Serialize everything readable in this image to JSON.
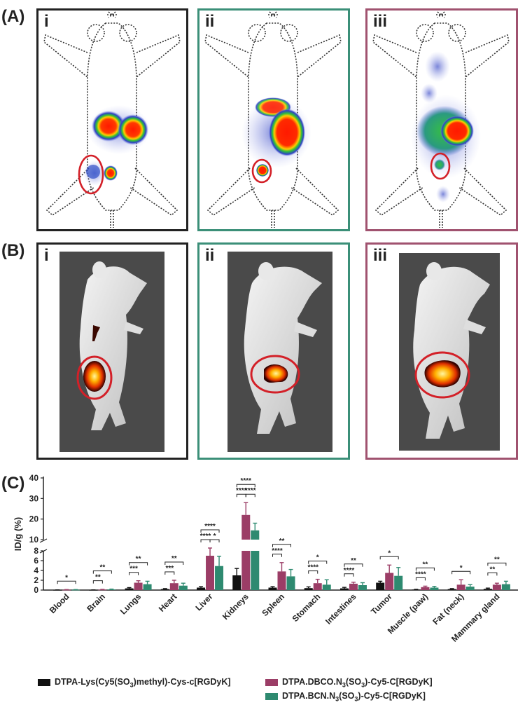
{
  "sections": {
    "a": "(A)",
    "b": "(B)",
    "c": "(C)"
  },
  "panels": {
    "a": [
      "i",
      "ii",
      "iii"
    ],
    "b": [
      "i",
      "ii",
      "iii"
    ]
  },
  "colors": {
    "panel_i": "#1a1a1a",
    "panel_ii": "#3b8f78",
    "panel_iii": "#a0526f",
    "highlight_circle": "#d32028",
    "series_1": "#111111",
    "series_2": "#9b3d66",
    "series_3": "#2e8a70"
  },
  "chart_data": {
    "type": "bar",
    "ylabel": "ID/g (%)",
    "ylim_lower": [
      0,
      8
    ],
    "ylim_upper": [
      10,
      40
    ],
    "yticks_lower": [
      "0",
      "2",
      "4",
      "6",
      "8"
    ],
    "yticks_upper": [
      "10",
      "20",
      "30",
      "40"
    ],
    "categories": [
      "Blood",
      "Brain",
      "Lungs",
      "Heart",
      "Liver",
      "Kidneys",
      "Spleen",
      "Stomach",
      "Intestines",
      "Tumor",
      "Muscle (paw)",
      "Fat (neck)",
      "Mammary gland"
    ],
    "series": [
      {
        "name": "DTPA-Lys(Cy5(SO3)methyl)-Cys-c[RGDyK]",
        "values": [
          0.02,
          0.02,
          0.35,
          0.2,
          0.5,
          3.0,
          0.5,
          0.4,
          0.35,
          1.5,
          0.1,
          0.2,
          0.25
        ],
        "errors": [
          0.02,
          0.02,
          0.15,
          0.1,
          0.2,
          1.4,
          0.2,
          0.25,
          0.2,
          0.3,
          0.05,
          0.1,
          0.15
        ]
      },
      {
        "name": "DTPA.DBCO.N3(SO3)-Cy5-C[RGDyK]",
        "values": [
          0.05,
          0.08,
          1.5,
          1.4,
          7.0,
          22.0,
          3.8,
          1.4,
          1.3,
          3.5,
          0.6,
          1.1,
          1.1
        ],
        "errors": [
          0.05,
          0.06,
          0.4,
          0.6,
          1.5,
          6.0,
          1.8,
          0.8,
          0.3,
          1.6,
          0.2,
          1.0,
          0.3
        ]
      },
      {
        "name": "DTPA.BCN.N3(SO3)-Cy5-C[RGDyK]",
        "values": [
          0.05,
          0.12,
          1.2,
          0.9,
          4.9,
          14.5,
          2.8,
          1.1,
          1.0,
          2.9,
          0.5,
          0.7,
          1.2
        ],
        "errors": [
          0.05,
          0.08,
          0.6,
          0.5,
          2.0,
          3.5,
          1.4,
          1.0,
          0.5,
          1.7,
          0.25,
          0.4,
          0.6
        ]
      }
    ],
    "significance": [
      {
        "category": "Blood",
        "labels": [
          "*"
        ]
      },
      {
        "category": "Brain",
        "labels": [
          "**",
          "**"
        ]
      },
      {
        "category": "Lungs",
        "labels": [
          "***",
          "**"
        ]
      },
      {
        "category": "Heart",
        "labels": [
          "***",
          "**"
        ]
      },
      {
        "category": "Liver",
        "labels": [
          "****",
          "*",
          "****"
        ]
      },
      {
        "category": "Kidneys",
        "labels": [
          "****",
          "****",
          "****"
        ]
      },
      {
        "category": "Spleen",
        "labels": [
          "****",
          "**"
        ]
      },
      {
        "category": "Stomach",
        "labels": [
          "****",
          "*"
        ]
      },
      {
        "category": "Intestines",
        "labels": [
          "****",
          "**"
        ]
      },
      {
        "category": "Tumor",
        "labels": [
          "*"
        ]
      },
      {
        "category": "Muscle (paw)",
        "labels": [
          "****",
          "**"
        ]
      },
      {
        "category": "Fat (neck)",
        "labels": [
          "*"
        ]
      },
      {
        "category": "Mammary gland",
        "labels": [
          "**",
          "**"
        ]
      }
    ],
    "legend": {
      "s1_prefix": "DTPA-Lys(Cy5(SO",
      "s1_sub": "3",
      "s1_suffix": ")methyl)-Cys-c[RGDyK]",
      "s2_prefix": "DTPA.DBCO.N",
      "s2_sub1": "3",
      "s2_mid": "(SO",
      "s2_sub2": "3",
      "s2_suffix": ")-Cy5-C[RGDyK]",
      "s3_prefix": "DTPA.BCN.N",
      "s3_sub1": "3",
      "s3_mid": "(SO",
      "s3_sub2": "3",
      "s3_suffix": ")-Cy5-C[RGDyK]"
    }
  }
}
